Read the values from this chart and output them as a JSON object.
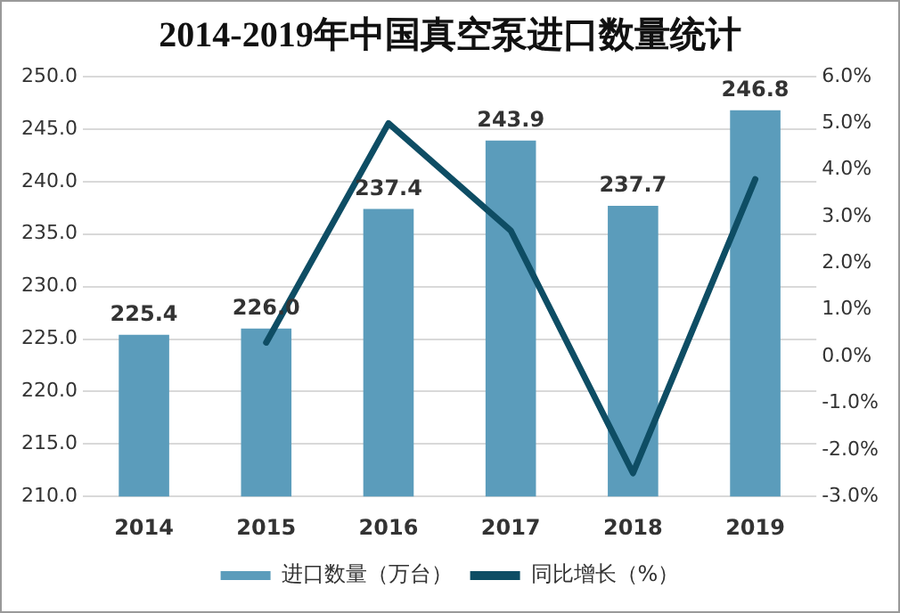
{
  "chart_data": {
    "type": "bar",
    "title": "2014-2019年中国真空泵进口数量统计",
    "categories": [
      "2014",
      "2015",
      "2016",
      "2017",
      "2018",
      "2019"
    ],
    "series": [
      {
        "name": "进口数量（万台）",
        "color": "#5b9cbb",
        "values": [
          225.4,
          226.0,
          237.4,
          243.9,
          237.7,
          246.8
        ]
      },
      {
        "name": "同比增长（%）",
        "type": "line",
        "axis": "y2",
        "color": "#0e4d64",
        "values": [
          null,
          0.3,
          5.0,
          2.7,
          -2.5,
          3.8
        ]
      }
    ],
    "value_labels": [
      "225.4",
      "226.0",
      "237.4",
      "243.9",
      "237.7",
      "246.8"
    ],
    "ylim": [
      210,
      250
    ],
    "yticks": [
      {
        "value": 210,
        "label": "210.0"
      },
      {
        "value": 215,
        "label": "215.0"
      },
      {
        "value": 220,
        "label": "220.0"
      },
      {
        "value": 225,
        "label": "225.0"
      },
      {
        "value": 230,
        "label": "230.0"
      },
      {
        "value": 235,
        "label": "235.0"
      },
      {
        "value": 240,
        "label": "240.0"
      },
      {
        "value": 245,
        "label": "245.0"
      },
      {
        "value": 250,
        "label": "250.0"
      }
    ],
    "y2lim": [
      -3,
      6
    ],
    "y2ticks": [
      {
        "value": -3,
        "label": "-3.0%"
      },
      {
        "value": -2,
        "label": "-2.0%"
      },
      {
        "value": -1,
        "label": "-1.0%"
      },
      {
        "value": 0,
        "label": "0.0%"
      },
      {
        "value": 1,
        "label": "1.0%"
      },
      {
        "value": 2,
        "label": "2.0%"
      },
      {
        "value": 3,
        "label": "3.0%"
      },
      {
        "value": 4,
        "label": "4.0%"
      },
      {
        "value": 5,
        "label": "5.0%"
      },
      {
        "value": 6,
        "label": "6.0%"
      }
    ],
    "grid": "y",
    "legend": "bottom",
    "marker": "none"
  }
}
